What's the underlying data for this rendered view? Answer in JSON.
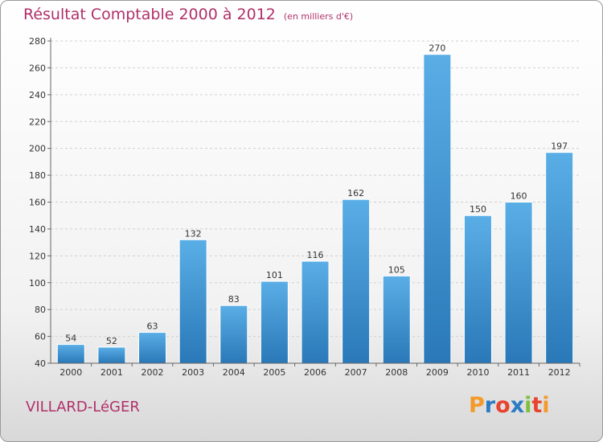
{
  "header": {
    "title": "Résultat Comptable 2000 à 2012",
    "unit": "(en milliers d'€)"
  },
  "footer": {
    "subject": "VILLARD-LéGER",
    "logo": [
      "P",
      "r",
      "o",
      "x",
      "i",
      "t",
      "i"
    ],
    "logo_colors": [
      "#f39a2a",
      "#2b7bc4",
      "#e8432f",
      "#2b7bc4",
      "#7fbf3c",
      "#e8432f",
      "#f39a2a"
    ]
  },
  "colors": {
    "bar_top": "#5aaee6",
    "bar_bottom": "#2a78b8",
    "accent": "#b0306a"
  },
  "chart_data": {
    "type": "bar",
    "categories": [
      "2000",
      "2001",
      "2002",
      "2003",
      "2004",
      "2005",
      "2006",
      "2007",
      "2008",
      "2009",
      "2010",
      "2011",
      "2012"
    ],
    "values": [
      54,
      52,
      63,
      132,
      83,
      101,
      116,
      162,
      105,
      270,
      150,
      160,
      197
    ],
    "ylim": [
      40,
      280
    ],
    "yticks": [
      40,
      60,
      80,
      100,
      120,
      140,
      160,
      180,
      200,
      220,
      240,
      260,
      280
    ],
    "grid": true
  }
}
